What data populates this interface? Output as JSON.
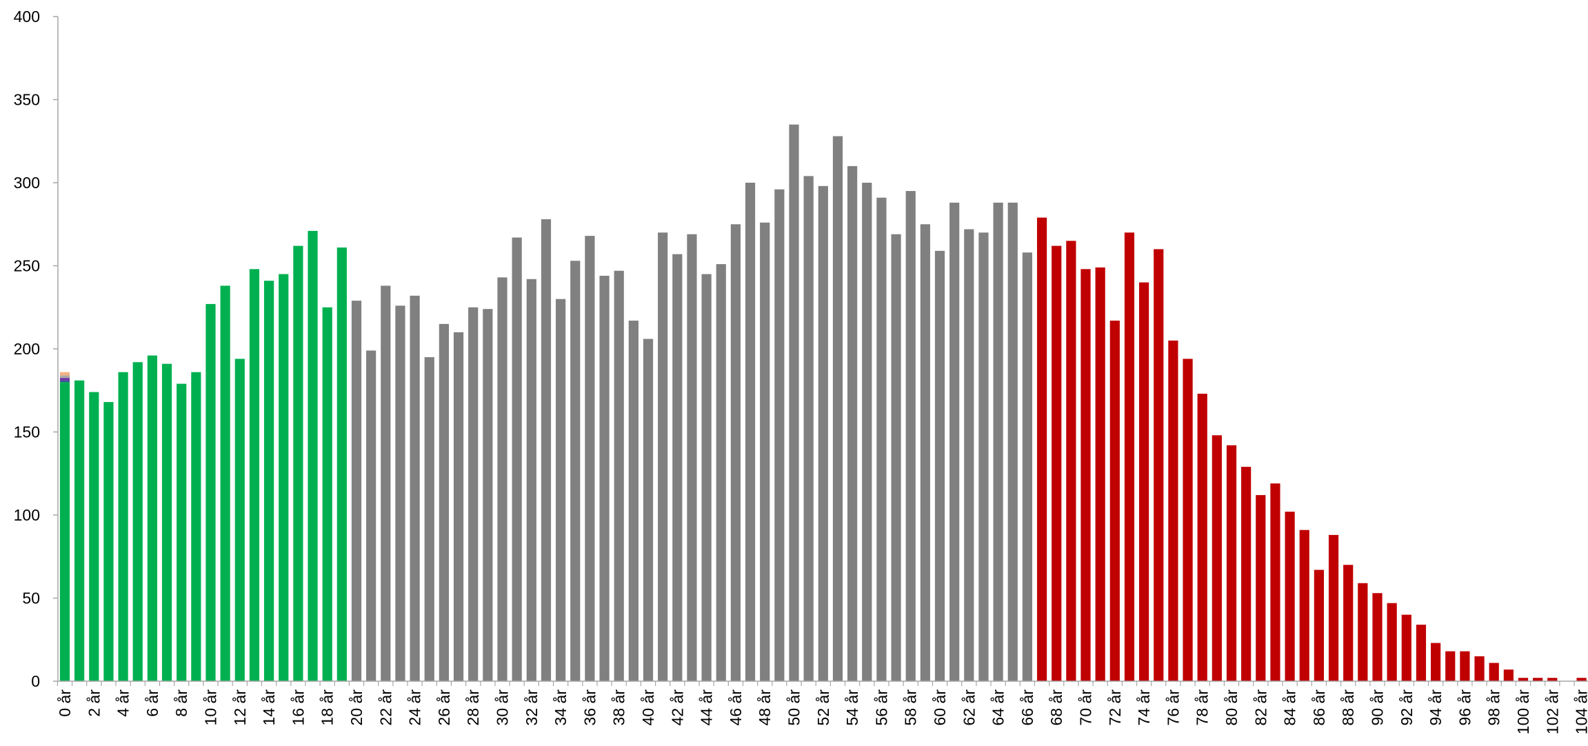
{
  "chart_data": {
    "type": "bar",
    "title": "",
    "xlabel": "",
    "ylabel": "",
    "ylim": [
      0,
      400
    ],
    "yticks": [
      0,
      50,
      100,
      150,
      200,
      250,
      300,
      350,
      400
    ],
    "grid": false,
    "legend": "none",
    "x_label_every": 2,
    "categories": [
      "0 år",
      "1 år",
      "2 år",
      "3 år",
      "4 år",
      "5 år",
      "6 år",
      "7 år",
      "8 år",
      "9 år",
      "10 år",
      "11 år",
      "12 år",
      "13 år",
      "14 år",
      "15 år",
      "16 år",
      "17 år",
      "18 år",
      "19 år",
      "20 år",
      "21 år",
      "22 år",
      "23 år",
      "24 år",
      "25 år",
      "26 år",
      "27 år",
      "28 år",
      "29 år",
      "30 år",
      "31 år",
      "32 år",
      "33 år",
      "34 år",
      "35 år",
      "36 år",
      "37 år",
      "38 år",
      "39 år",
      "40 år",
      "41 år",
      "42 år",
      "43 år",
      "44 år",
      "45 år",
      "46 år",
      "47 år",
      "48 år",
      "49 år",
      "50 år",
      "51 år",
      "52 år",
      "53 år",
      "54 år",
      "55 år",
      "56 år",
      "57 år",
      "58 år",
      "59 år",
      "60 år",
      "61 år",
      "62 år",
      "63 år",
      "64 år",
      "65 år",
      "66 år",
      "67 år",
      "68 år",
      "69 år",
      "70 år",
      "71 år",
      "72 år",
      "73 år",
      "74 år",
      "75 år",
      "76 år",
      "77 år",
      "78 år",
      "79 år",
      "80 år",
      "81 år",
      "82 år",
      "83 år",
      "84 år",
      "85 år",
      "86 år",
      "87 år",
      "88 år",
      "89 år",
      "90 år",
      "91 år",
      "92 år",
      "93 år",
      "94 år",
      "95 år",
      "96 år",
      "97 år",
      "98 år",
      "99 år",
      "100 år",
      "101 år",
      "102 år",
      "103 år",
      "104 år"
    ],
    "values": [
      180,
      181,
      174,
      168,
      186,
      192,
      196,
      191,
      179,
      186,
      227,
      238,
      194,
      248,
      241,
      245,
      262,
      271,
      225,
      261,
      229,
      199,
      238,
      226,
      232,
      195,
      215,
      210,
      225,
      224,
      243,
      267,
      242,
      278,
      230,
      253,
      268,
      244,
      247,
      217,
      206,
      270,
      257,
      269,
      245,
      251,
      275,
      300,
      276,
      296,
      335,
      304,
      298,
      328,
      310,
      300,
      291,
      269,
      295,
      275,
      259,
      288,
      272,
      270,
      288,
      288,
      258,
      279,
      262,
      265,
      248,
      249,
      217,
      270,
      240,
      260,
      205,
      194,
      173,
      148,
      142,
      129,
      112,
      119,
      102,
      91,
      67,
      88,
      70,
      59,
      53,
      47,
      40,
      34,
      23,
      18,
      18,
      15,
      11,
      7,
      2,
      2,
      2,
      0,
      2
    ],
    "groups": [
      {
        "from": 0,
        "to": 19,
        "color": "#00b050"
      },
      {
        "from": 20,
        "to": 66,
        "color": "#808080"
      },
      {
        "from": 67,
        "to": 104,
        "color": "#c00000"
      }
    ],
    "stack_on_first_bar": [
      {
        "value": 1,
        "color": "#2f5597"
      },
      {
        "value": 1.5,
        "color": "#7030a0"
      },
      {
        "value": 1.5,
        "color": "#a9a9a9"
      },
      {
        "value": 2,
        "color": "#f4b183"
      }
    ],
    "colors": {
      "axis": "#a6a6a6",
      "text": "#000000"
    }
  }
}
